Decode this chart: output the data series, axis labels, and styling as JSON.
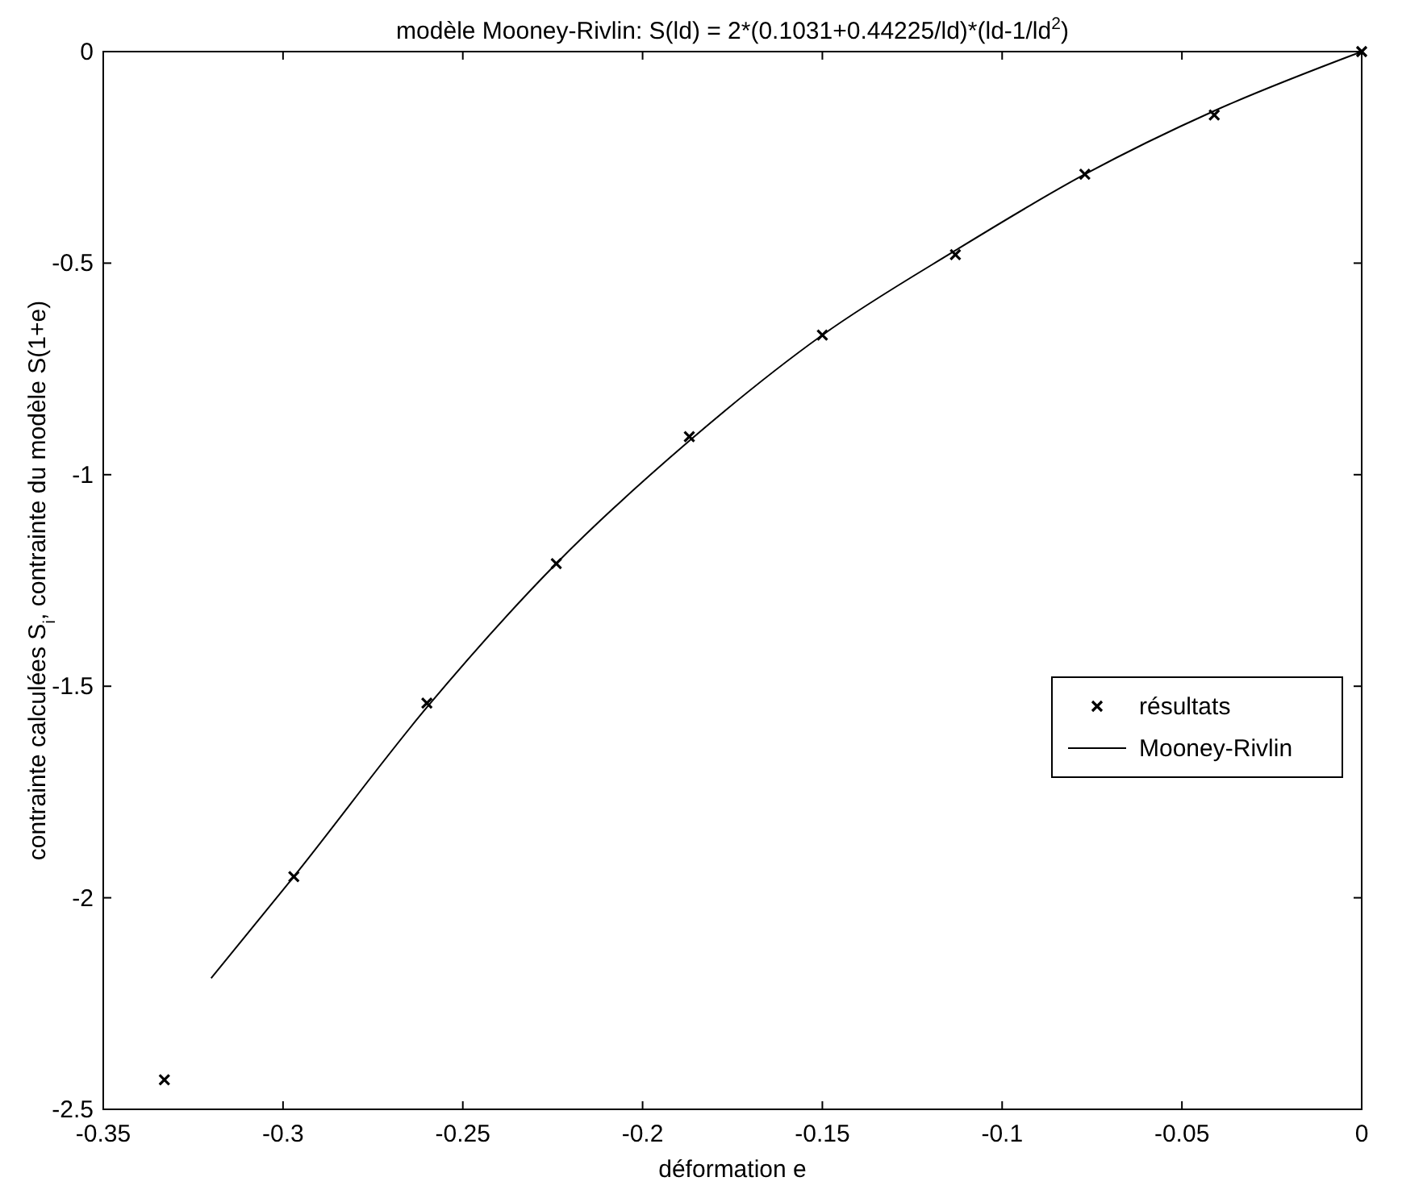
{
  "chart_data": {
    "type": "scatter",
    "title": "modèle Mooney-Rivlin: S(ld) = 2*(0.1031+0.44225/ld)*(ld-1/ld$^{2}$)",
    "xlabel": "déformation e",
    "ylabel": "contrainte calculées S$_{i}$, contrainte du modèle S(1+e)",
    "xlim": [
      -0.35,
      0
    ],
    "xticks": [
      -0.35,
      -0.3,
      -0.25,
      -0.2,
      -0.15,
      -0.1,
      -0.05,
      0
    ],
    "ylim": [
      -2.5,
      0
    ],
    "yticks": [
      -2.5,
      -2,
      -1.5,
      -1,
      -0.5,
      0
    ],
    "grid": false,
    "legend": "right",
    "series": [
      {
        "name": "résultats",
        "marker": "cross",
        "color": "#000000",
        "x": [
          -0.333,
          -0.297,
          -0.26,
          -0.224,
          -0.187,
          -0.15,
          -0.113,
          -0.077,
          -0.041,
          0
        ],
        "values": [
          -2.43,
          -1.95,
          -1.54,
          -1.21,
          -0.91,
          -0.67,
          -0.48,
          -0.29,
          -0.15,
          0
        ]
      },
      {
        "name": "Mooney-Rivlin",
        "type": "line",
        "line_style": "solid",
        "color": "#000000",
        "x": [
          -0.32,
          -0.297,
          -0.26,
          -0.224,
          -0.187,
          -0.15,
          -0.113,
          -0.077,
          -0.041,
          0
        ],
        "values": [
          -2.19,
          -1.95,
          -1.55,
          -1.21,
          -0.92,
          -0.67,
          -0.47,
          -0.29,
          -0.14,
          0
        ]
      }
    ]
  }
}
